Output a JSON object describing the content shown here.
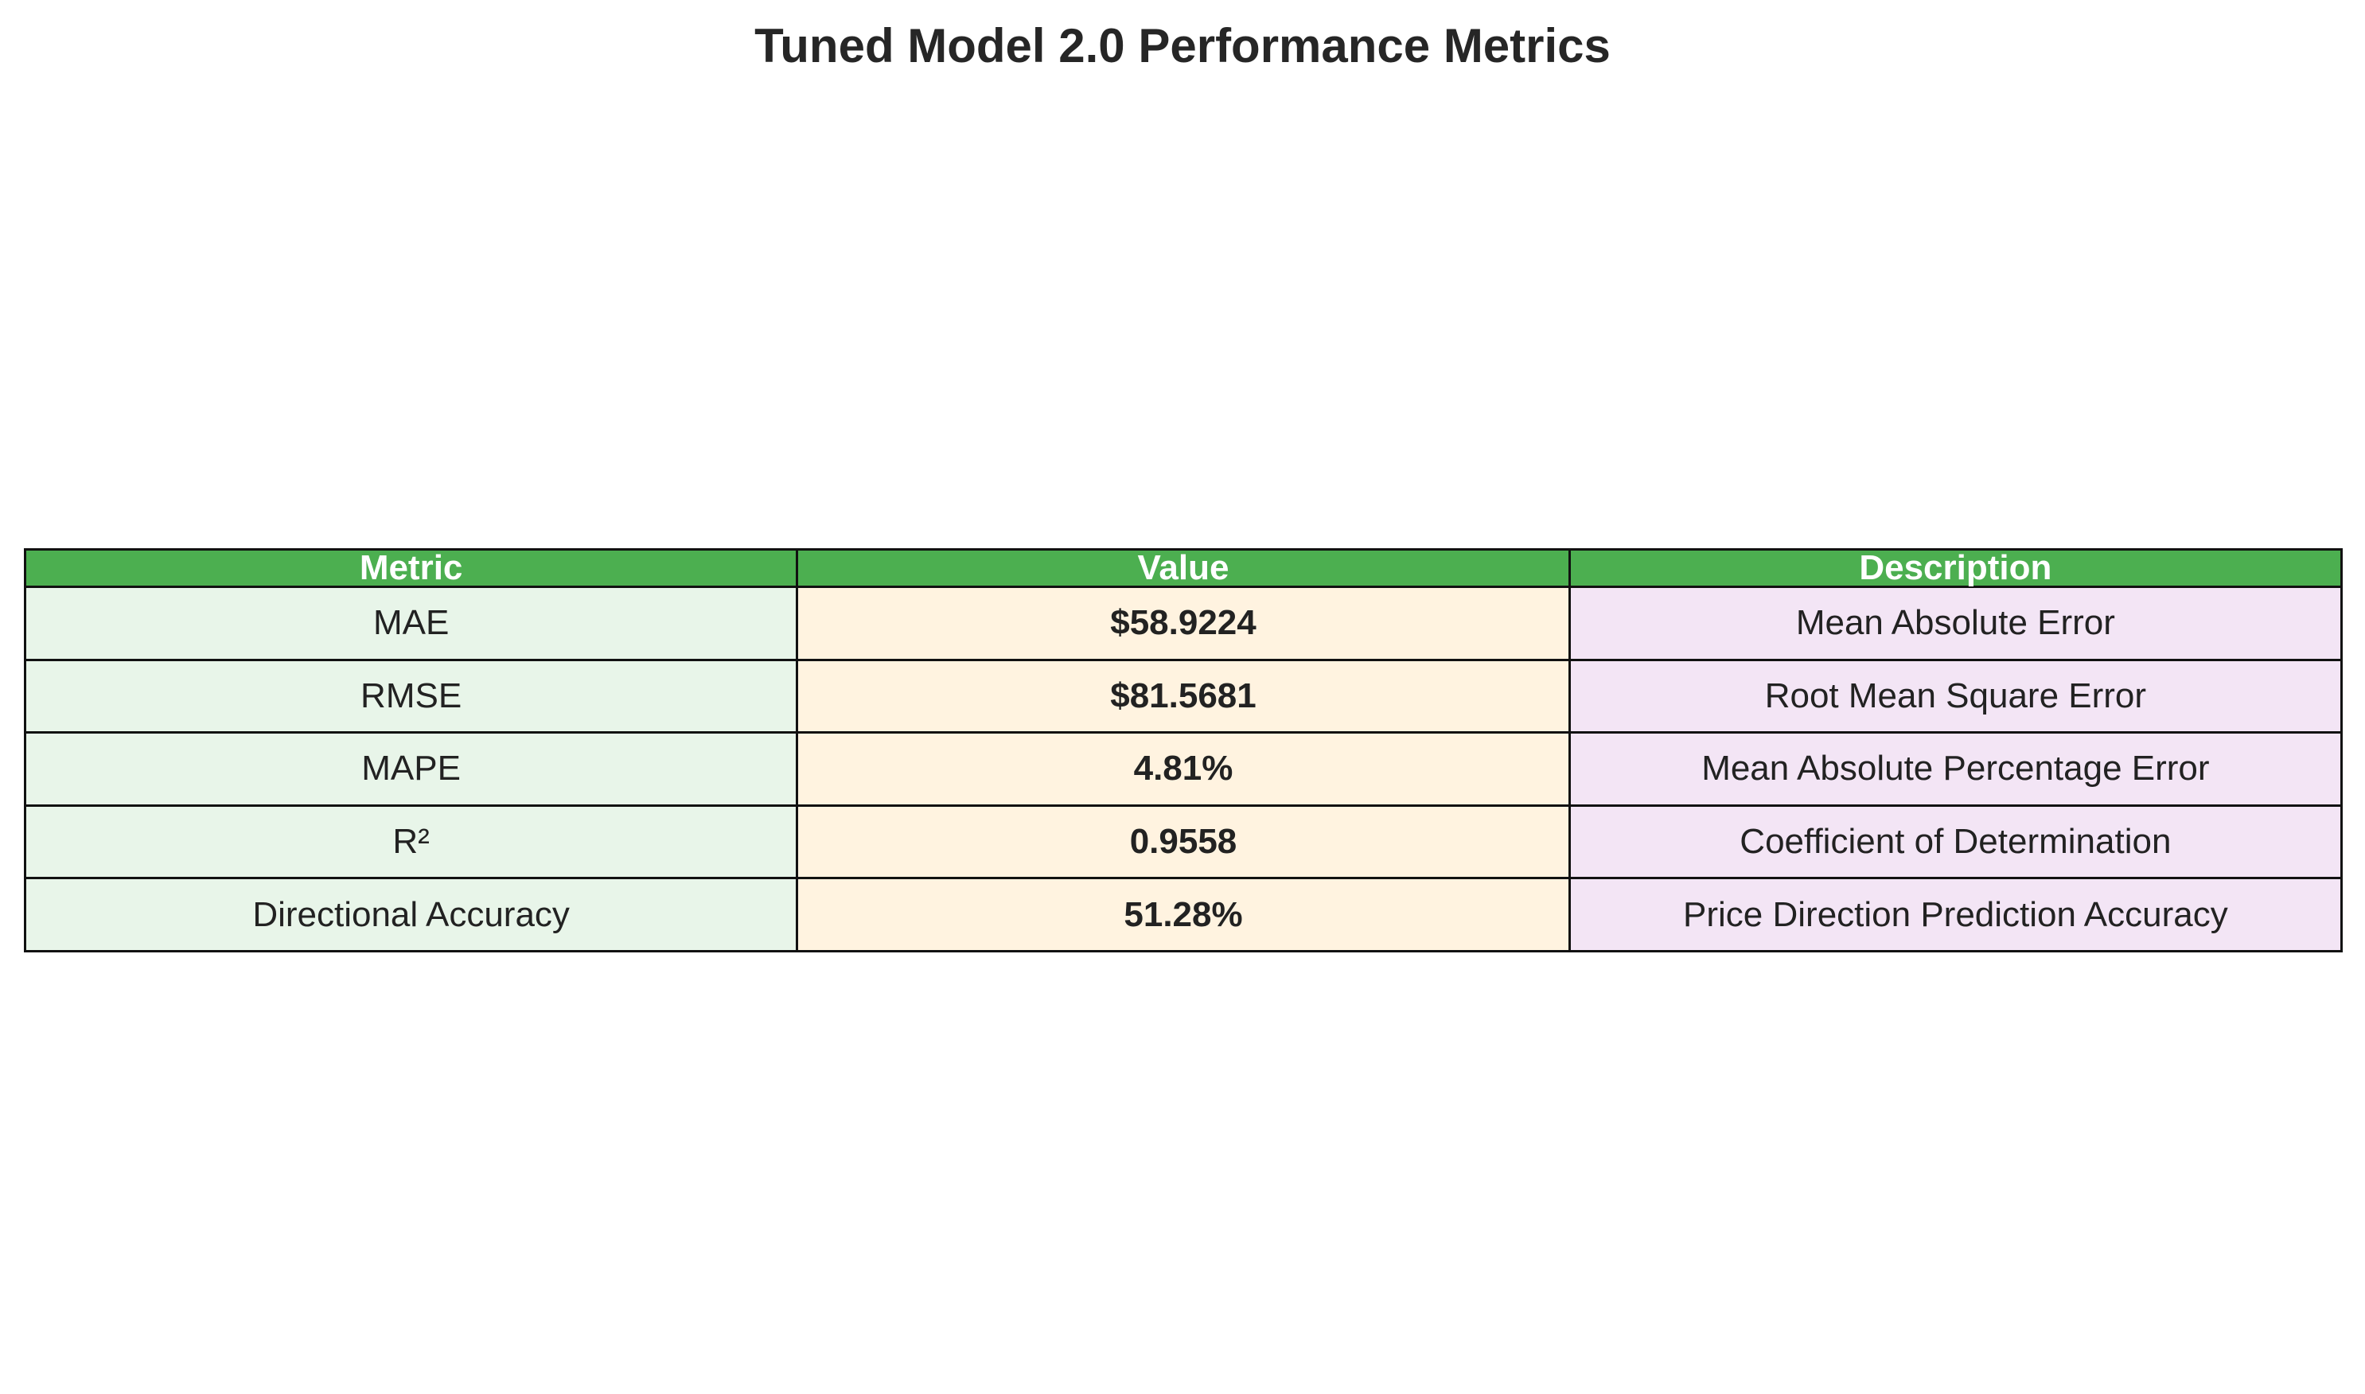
{
  "chart_data": {
    "type": "table",
    "title": "Tuned Model 2.0 Performance Metrics",
    "columns": [
      "Metric",
      "Value",
      "Description"
    ],
    "rows": [
      {
        "metric": "MAE",
        "value": "$58.9224",
        "description": "Mean Absolute Error"
      },
      {
        "metric": "RMSE",
        "value": "$81.5681",
        "description": "Root Mean Square Error"
      },
      {
        "metric": "MAPE",
        "value": "4.81%",
        "description": "Mean Absolute Percentage Error"
      },
      {
        "metric": "R²",
        "value": "0.9558",
        "description": "Coefficient of Determination"
      },
      {
        "metric": "Directional Accuracy",
        "value": "51.28%",
        "description": "Price Direction Prediction Accuracy"
      }
    ],
    "colors": {
      "header_bg": "#4caf50",
      "header_text": "#ffffff",
      "metric_col_bg": "#e8f5e9",
      "value_col_bg": "#fff3e0",
      "description_col_bg": "#f3e5f5",
      "border": "#111111"
    }
  }
}
